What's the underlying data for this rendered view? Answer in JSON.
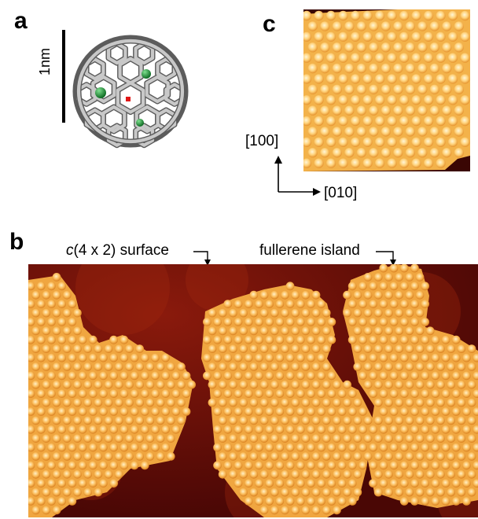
{
  "panels": {
    "a": {
      "letter": "a",
      "scale_bar_label": "1nm",
      "stroke_color": "#9a9a9a",
      "dopant_color": "#1c8a33",
      "center_color": "#e01616"
    },
    "b": {
      "letter": "b",
      "surface_prefix": "c",
      "surface_suffix": "(4 x 2) surface",
      "island_label": "fullerene island",
      "background_color": "#5a0a06",
      "island_color": "#f0a640"
    },
    "c": {
      "letter": "c",
      "axis_vertical": "[100]",
      "axis_horizontal": "[010]",
      "island_color": "#f3b24a"
    }
  }
}
